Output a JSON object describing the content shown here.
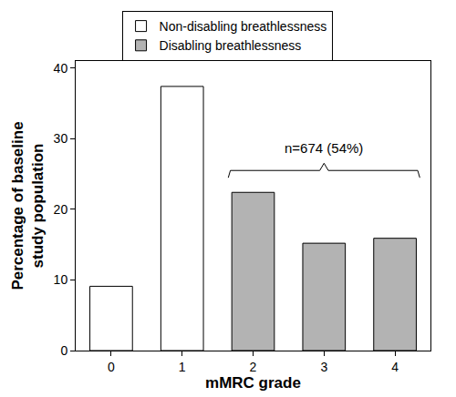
{
  "chart_data": {
    "type": "bar",
    "x_label": "mMRC grade",
    "y_label": "Percentage of baseline\nstudy population",
    "categories": [
      "0",
      "1",
      "2",
      "3",
      "4"
    ],
    "series": [
      {
        "name": "Non-disabling breathlessness",
        "color": "#ffffff",
        "values": [
          9.1,
          37.4,
          null,
          null,
          null
        ]
      },
      {
        "name": "Disabling breathlessness",
        "color": "#b3b3b3",
        "values": [
          null,
          null,
          22.4,
          15.2,
          15.9
        ]
      }
    ],
    "ylim": [
      0,
      41
    ],
    "yticks": [
      0,
      10,
      20,
      30,
      40
    ],
    "grid": false,
    "legend": "top",
    "annotations": [
      {
        "text": "n=674 (54%)",
        "from": "2",
        "to": "4",
        "y": 25.5
      }
    ]
  }
}
